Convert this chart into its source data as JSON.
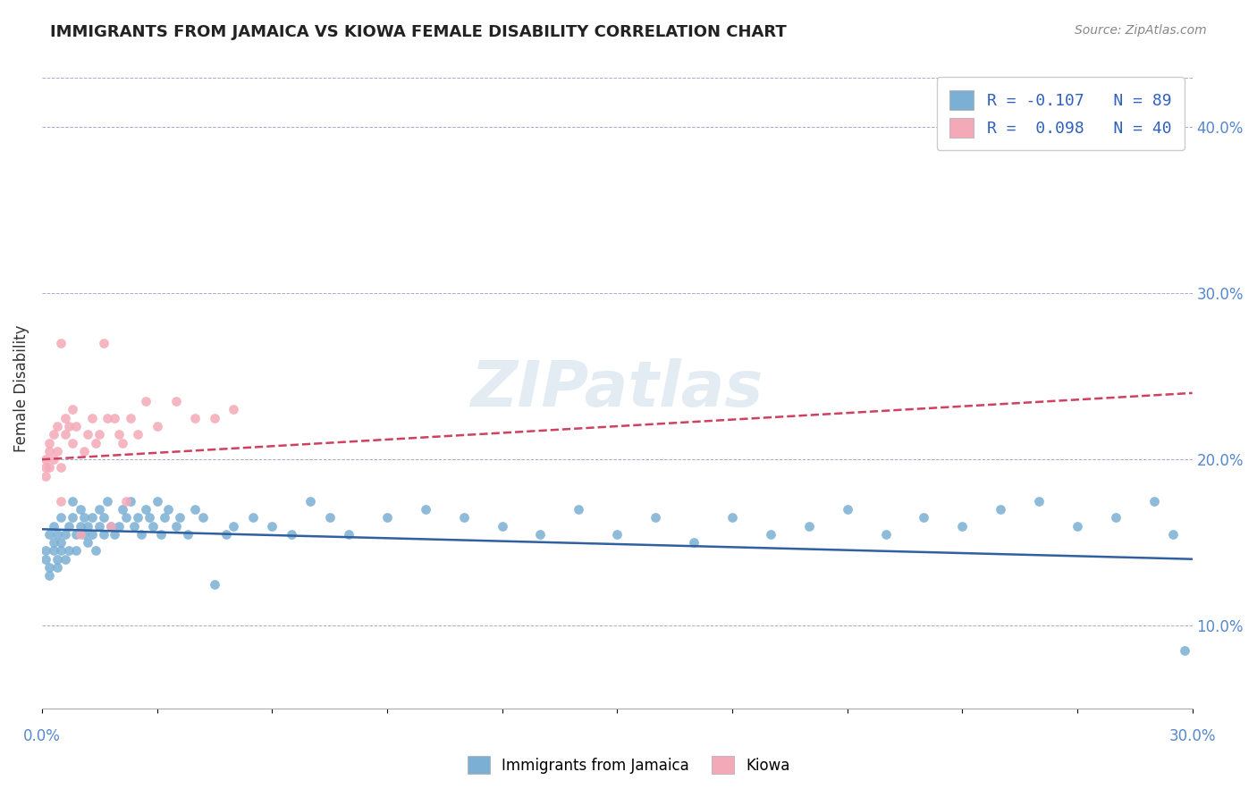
{
  "title": "IMMIGRANTS FROM JAMAICA VS KIOWA FEMALE DISABILITY CORRELATION CHART",
  "source": "Source: ZipAtlas.com",
  "ylabel": "Female Disability",
  "right_yticks": [
    "40.0%",
    "30.0%",
    "20.0%",
    "10.0%"
  ],
  "right_ytick_vals": [
    0.4,
    0.3,
    0.2,
    0.1
  ],
  "legend_blue_label": "R = -0.107   N = 89",
  "legend_pink_label": "R =  0.098   N = 40",
  "legend_bottom_blue": "Immigrants from Jamaica",
  "legend_bottom_pink": "Kiowa",
  "xmin": 0.0,
  "xmax": 0.3,
  "ymin": 0.05,
  "ymax": 0.435,
  "blue_color": "#7bafd4",
  "pink_color": "#f4a9b8",
  "blue_line_color": "#3060a0",
  "pink_line_color": "#d04060",
  "watermark": "ZIPatlas",
  "blue_scatter_x": [
    0.001,
    0.001,
    0.002,
    0.002,
    0.002,
    0.003,
    0.003,
    0.003,
    0.004,
    0.004,
    0.004,
    0.005,
    0.005,
    0.005,
    0.006,
    0.006,
    0.007,
    0.007,
    0.008,
    0.008,
    0.009,
    0.009,
    0.01,
    0.01,
    0.011,
    0.011,
    0.012,
    0.012,
    0.013,
    0.013,
    0.014,
    0.015,
    0.015,
    0.016,
    0.016,
    0.017,
    0.018,
    0.019,
    0.02,
    0.021,
    0.022,
    0.023,
    0.024,
    0.025,
    0.026,
    0.027,
    0.028,
    0.029,
    0.03,
    0.031,
    0.032,
    0.033,
    0.035,
    0.036,
    0.038,
    0.04,
    0.042,
    0.045,
    0.048,
    0.05,
    0.055,
    0.06,
    0.065,
    0.07,
    0.075,
    0.08,
    0.09,
    0.1,
    0.11,
    0.12,
    0.13,
    0.14,
    0.15,
    0.16,
    0.17,
    0.18,
    0.19,
    0.2,
    0.21,
    0.22,
    0.23,
    0.24,
    0.25,
    0.26,
    0.27,
    0.28,
    0.29,
    0.295,
    0.298
  ],
  "blue_scatter_y": [
    0.145,
    0.14,
    0.155,
    0.13,
    0.135,
    0.145,
    0.15,
    0.16,
    0.14,
    0.135,
    0.155,
    0.145,
    0.165,
    0.15,
    0.14,
    0.155,
    0.145,
    0.16,
    0.165,
    0.175,
    0.155,
    0.145,
    0.16,
    0.17,
    0.155,
    0.165,
    0.15,
    0.16,
    0.165,
    0.155,
    0.145,
    0.17,
    0.16,
    0.155,
    0.165,
    0.175,
    0.16,
    0.155,
    0.16,
    0.17,
    0.165,
    0.175,
    0.16,
    0.165,
    0.155,
    0.17,
    0.165,
    0.16,
    0.175,
    0.155,
    0.165,
    0.17,
    0.16,
    0.165,
    0.155,
    0.17,
    0.165,
    0.125,
    0.155,
    0.16,
    0.165,
    0.16,
    0.155,
    0.175,
    0.165,
    0.155,
    0.165,
    0.17,
    0.165,
    0.16,
    0.155,
    0.17,
    0.155,
    0.165,
    0.15,
    0.165,
    0.155,
    0.16,
    0.17,
    0.155,
    0.165,
    0.16,
    0.17,
    0.175,
    0.16,
    0.165,
    0.175,
    0.155,
    0.085
  ],
  "pink_scatter_x": [
    0.001,
    0.001,
    0.001,
    0.002,
    0.002,
    0.002,
    0.003,
    0.003,
    0.004,
    0.004,
    0.005,
    0.005,
    0.005,
    0.006,
    0.006,
    0.007,
    0.008,
    0.008,
    0.009,
    0.01,
    0.011,
    0.012,
    0.013,
    0.014,
    0.015,
    0.016,
    0.017,
    0.018,
    0.019,
    0.02,
    0.021,
    0.022,
    0.023,
    0.025,
    0.027,
    0.03,
    0.035,
    0.04,
    0.045,
    0.05
  ],
  "pink_scatter_y": [
    0.195,
    0.2,
    0.19,
    0.205,
    0.195,
    0.21,
    0.2,
    0.215,
    0.205,
    0.22,
    0.175,
    0.195,
    0.27,
    0.215,
    0.225,
    0.22,
    0.21,
    0.23,
    0.22,
    0.155,
    0.205,
    0.215,
    0.225,
    0.21,
    0.215,
    0.27,
    0.225,
    0.16,
    0.225,
    0.215,
    0.21,
    0.175,
    0.225,
    0.215,
    0.235,
    0.22,
    0.235,
    0.225,
    0.225,
    0.23
  ],
  "blue_trend_x": [
    0.0,
    0.3
  ],
  "blue_trend_y": [
    0.158,
    0.14
  ],
  "pink_trend_x": [
    0.0,
    0.3
  ],
  "pink_trend_y": [
    0.2,
    0.24
  ]
}
